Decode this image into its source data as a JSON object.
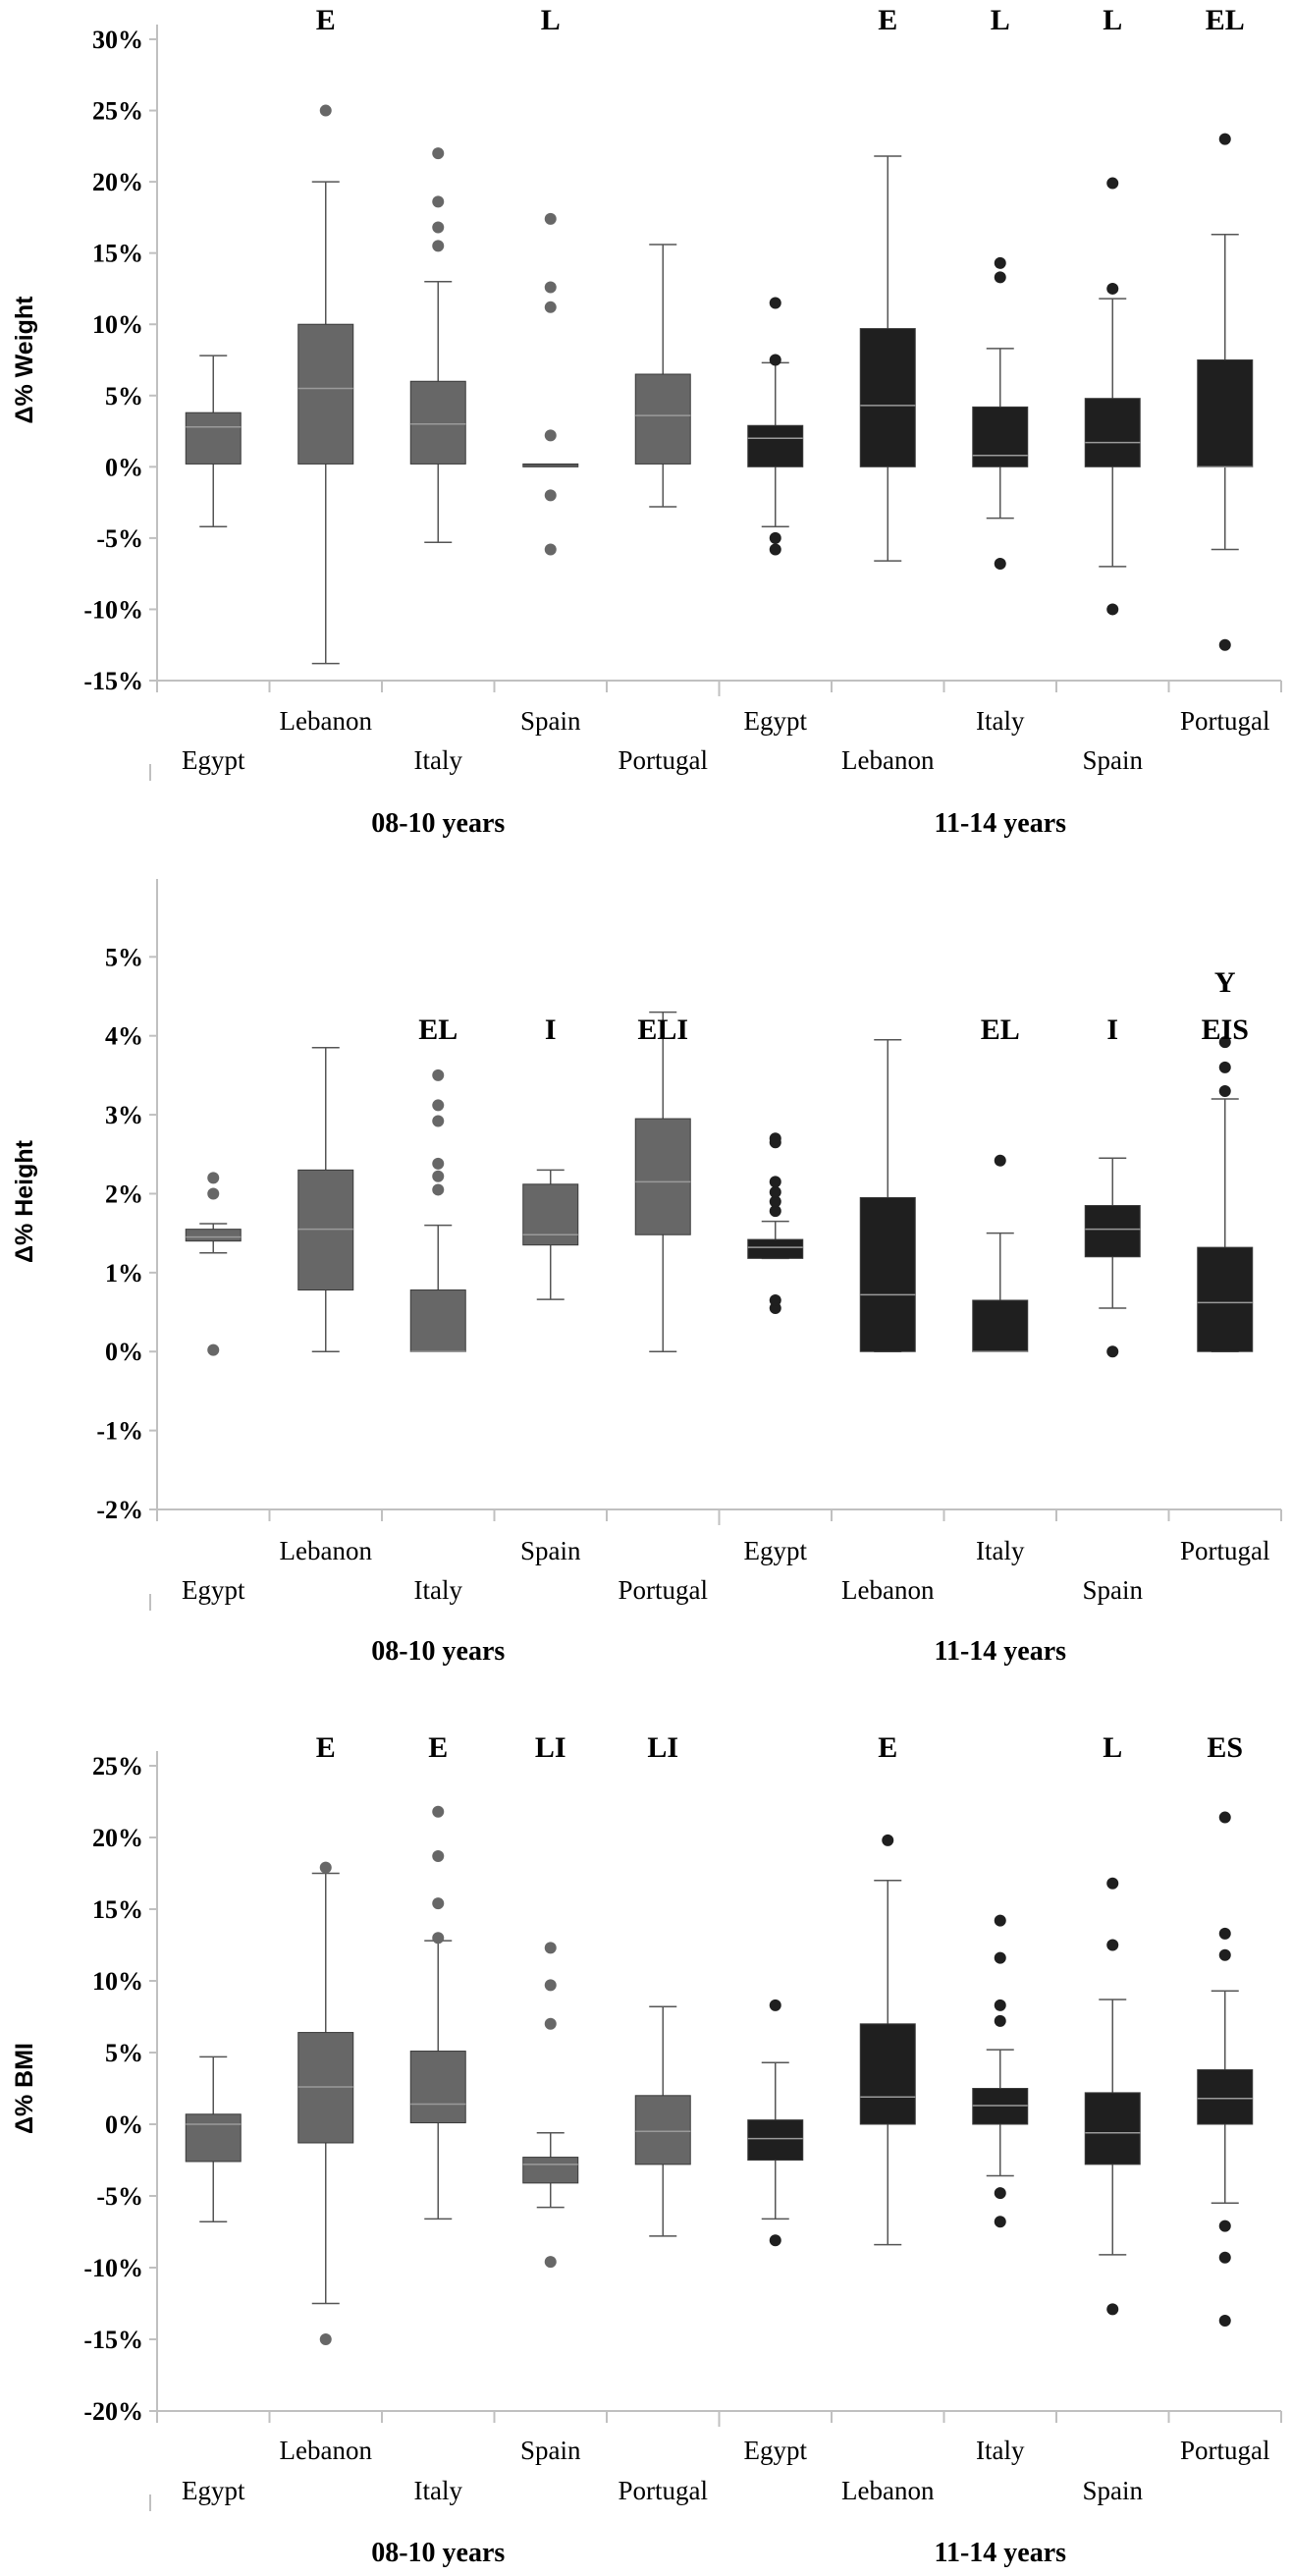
{
  "colors": {
    "young": "#676767",
    "old": "#1f1f1f",
    "axis": "#c0c0c0",
    "whisker": "#555555"
  },
  "chart_data": [
    {
      "type": "box",
      "ylabel": "Δ% Weight",
      "ylim": [
        -15,
        30
      ],
      "yticks": [
        -15,
        -10,
        -5,
        0,
        5,
        10,
        15,
        20,
        25,
        30
      ],
      "ytick_labels": [
        "-15%",
        "-10%",
        "-5%",
        "0%",
        "5%",
        "10%",
        "15%",
        "20%",
        "25%",
        "30%"
      ],
      "groups": [
        "08-10 years",
        "11-14 years"
      ],
      "categories": [
        "Egypt",
        "Lebanon",
        "Italy",
        "Spain",
        "Portugal",
        "Egypt",
        "Lebanon",
        "Italy",
        "Spain",
        "Portugal"
      ],
      "boxes": [
        {
          "q1": 0.2,
          "med": 2.8,
          "q3": 3.8,
          "wlo": -4.2,
          "whi": 7.8,
          "out": [],
          "sig": ""
        },
        {
          "q1": 0.2,
          "med": 5.5,
          "q3": 10.0,
          "wlo": -13.8,
          "whi": 20.0,
          "out": [
            25.0
          ],
          "sig": "E"
        },
        {
          "q1": 0.2,
          "med": 3.0,
          "q3": 6.0,
          "wlo": -5.3,
          "whi": 13.0,
          "out": [
            15.5,
            16.8,
            18.6,
            22.0
          ],
          "sig": ""
        },
        {
          "q1": 0.0,
          "med": 0.1,
          "q3": 0.2,
          "wlo": null,
          "whi": null,
          "out": [
            -5.8,
            -2.0,
            2.2,
            11.2,
            12.6,
            17.4
          ],
          "sig": "L"
        },
        {
          "q1": 0.2,
          "med": 3.6,
          "q3": 6.5,
          "wlo": -2.8,
          "whi": 15.6,
          "out": [],
          "sig": ""
        },
        {
          "q1": 0.0,
          "med": 2.0,
          "q3": 2.9,
          "wlo": -4.2,
          "whi": 7.3,
          "out": [
            -5.8,
            -5.0,
            7.5,
            11.5
          ],
          "sig": ""
        },
        {
          "q1": 0.0,
          "med": 4.3,
          "q3": 9.7,
          "wlo": -6.6,
          "whi": 21.8,
          "out": [],
          "sig": "E"
        },
        {
          "q1": 0.0,
          "med": 0.8,
          "q3": 4.2,
          "wlo": -3.6,
          "whi": 8.3,
          "out": [
            -6.8,
            13.3,
            14.3
          ],
          "sig": "L"
        },
        {
          "q1": 0.0,
          "med": 1.7,
          "q3": 4.8,
          "wlo": -7.0,
          "whi": 11.8,
          "out": [
            -10.0,
            12.5,
            19.9
          ],
          "sig": "L"
        },
        {
          "q1": 0.0,
          "med": 0.0,
          "q3": 7.5,
          "wlo": -5.8,
          "whi": 16.3,
          "out": [
            -12.5,
            23.0
          ],
          "sig": "EL"
        }
      ]
    },
    {
      "type": "box",
      "ylabel": "Δ% Height",
      "ylim": [
        -2,
        5.8
      ],
      "yticks": [
        -2,
        -1,
        0,
        1,
        2,
        3,
        4,
        5
      ],
      "ytick_labels": [
        "-2%",
        "-1%",
        "0%",
        "1%",
        "2%",
        "3%",
        "4%",
        "5%"
      ],
      "groups": [
        "08-10 years",
        "11-14 years"
      ],
      "categories": [
        "Egypt",
        "Lebanon",
        "Italy",
        "Spain",
        "Portugal",
        "Egypt",
        "Lebanon",
        "Italy",
        "Spain",
        "Portugal"
      ],
      "boxes": [
        {
          "q1": 1.4,
          "med": 1.45,
          "q3": 1.55,
          "wlo": 1.25,
          "whi": 1.62,
          "out": [
            0.02,
            2.0,
            2.2
          ],
          "sig": ""
        },
        {
          "q1": 0.78,
          "med": 1.55,
          "q3": 2.3,
          "wlo": 0.0,
          "whi": 3.85,
          "out": [],
          "sig": ""
        },
        {
          "q1": 0.0,
          "med": 0.0,
          "q3": 0.78,
          "wlo": 0.0,
          "whi": 1.6,
          "out": [
            2.05,
            2.22,
            2.38,
            2.92,
            3.12,
            3.5
          ],
          "sig": "EL"
        },
        {
          "q1": 1.35,
          "med": 1.48,
          "q3": 2.12,
          "wlo": 0.66,
          "whi": 2.3,
          "out": [],
          "sig": "I"
        },
        {
          "q1": 1.48,
          "med": 2.15,
          "q3": 2.95,
          "wlo": 0.0,
          "whi": 4.3,
          "out": [],
          "sig": "ELI"
        },
        {
          "q1": 1.18,
          "med": 1.32,
          "q3": 1.42,
          "wlo": 1.18,
          "whi": 1.65,
          "out": [
            0.55,
            0.65,
            1.78,
            1.9,
            2.02,
            2.15,
            2.65,
            2.7
          ],
          "sig": ""
        },
        {
          "q1": 0.0,
          "med": 0.72,
          "q3": 1.95,
          "wlo": 0.0,
          "whi": 3.95,
          "out": [],
          "sig": ""
        },
        {
          "q1": 0.0,
          "med": 0.0,
          "q3": 0.65,
          "wlo": 0.0,
          "whi": 1.5,
          "out": [
            2.42
          ],
          "sig": "EL"
        },
        {
          "q1": 1.2,
          "med": 1.55,
          "q3": 1.85,
          "wlo": 0.55,
          "whi": 2.45,
          "out": [
            0.0
          ],
          "sig": "I"
        },
        {
          "q1": 0.0,
          "med": 0.62,
          "q3": 1.32,
          "wlo": 0.0,
          "whi": 3.2,
          "out": [
            3.3,
            3.6,
            3.92
          ],
          "sig": "EIS",
          "sig2": "Y"
        }
      ]
    },
    {
      "type": "box",
      "ylabel": "Δ% BMI",
      "ylim": [
        -20,
        25
      ],
      "yticks": [
        -20,
        -15,
        -10,
        -5,
        0,
        5,
        10,
        15,
        20,
        25
      ],
      "ytick_labels": [
        "-20%",
        "-15%",
        "-10%",
        "-5%",
        "0%",
        "5%",
        "10%",
        "15%",
        "20%",
        "25%"
      ],
      "groups": [
        "08-10 years",
        "11-14 years"
      ],
      "categories": [
        "Egypt",
        "Lebanon",
        "Italy",
        "Spain",
        "Portugal",
        "Egypt",
        "Lebanon",
        "Italy",
        "Spain",
        "Portugal"
      ],
      "boxes": [
        {
          "q1": -2.6,
          "med": 0.0,
          "q3": 0.7,
          "wlo": -6.8,
          "whi": 4.7,
          "out": [],
          "sig": ""
        },
        {
          "q1": -1.3,
          "med": 2.6,
          "q3": 6.4,
          "wlo": -12.5,
          "whi": 17.5,
          "out": [
            -15.0,
            17.9
          ],
          "sig": "E"
        },
        {
          "q1": 0.1,
          "med": 1.4,
          "q3": 5.1,
          "wlo": -6.6,
          "whi": 12.8,
          "out": [
            13.0,
            15.4,
            18.7,
            21.8
          ],
          "sig": "E"
        },
        {
          "q1": -4.1,
          "med": -2.8,
          "q3": -2.3,
          "wlo": -5.8,
          "whi": -0.6,
          "out": [
            -9.6,
            7.0,
            9.7,
            12.3
          ],
          "sig": "LI"
        },
        {
          "q1": -2.8,
          "med": -0.5,
          "q3": 2.0,
          "wlo": -7.8,
          "whi": 8.2,
          "out": [],
          "sig": "LI"
        },
        {
          "q1": -2.5,
          "med": -1.0,
          "q3": 0.3,
          "wlo": -6.6,
          "whi": 4.3,
          "out": [
            -8.1,
            8.3
          ],
          "sig": ""
        },
        {
          "q1": 0.0,
          "med": 1.9,
          "q3": 7.0,
          "wlo": -8.4,
          "whi": 17.0,
          "out": [
            19.8
          ],
          "sig": "E"
        },
        {
          "q1": 0.0,
          "med": 1.3,
          "q3": 2.5,
          "wlo": -3.6,
          "whi": 5.2,
          "out": [
            -6.8,
            -4.8,
            7.2,
            8.3,
            11.6,
            14.2
          ],
          "sig": ""
        },
        {
          "q1": -2.8,
          "med": -0.6,
          "q3": 2.2,
          "wlo": -9.1,
          "whi": 8.7,
          "out": [
            -12.9,
            12.5,
            16.8
          ],
          "sig": "L"
        },
        {
          "q1": 0.0,
          "med": 1.8,
          "q3": 3.8,
          "wlo": -5.5,
          "whi": 9.3,
          "out": [
            -13.7,
            -9.3,
            -7.1,
            11.8,
            13.3,
            21.4
          ],
          "sig": "ES"
        }
      ]
    }
  ]
}
